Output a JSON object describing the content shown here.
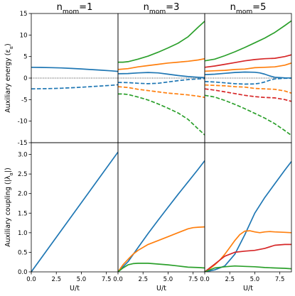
{
  "chart_data": [
    {
      "type": "line",
      "panel": "top-left",
      "title": "n_mom=1",
      "title_parts": {
        "base": "n",
        "sub": "mom",
        "rest": "=1"
      },
      "ylabel": "Auxiliary energy (ε_α)",
      "ylabel_parts": {
        "base": "Auxiliary energy (ε",
        "sub": "α",
        "rest": ")"
      },
      "xlim": [
        0,
        8.66
      ],
      "ylim": [
        -15,
        15
      ],
      "yticks": [
        -15,
        -10,
        -5,
        0,
        5,
        10,
        15
      ],
      "xticks": [],
      "zero_line": true,
      "series": [
        {
          "color": "#1f77b4",
          "dash": false,
          "x": [
            0,
            1,
            2,
            3,
            4,
            5,
            6,
            7,
            8,
            8.66
          ],
          "y": [
            2.5,
            2.48,
            2.43,
            2.35,
            2.24,
            2.12,
            1.98,
            1.83,
            1.68,
            1.55
          ]
        },
        {
          "color": "#1f77b4",
          "dash": true,
          "x": [
            0,
            1,
            2,
            3,
            4,
            5,
            6,
            7,
            8,
            8.66
          ],
          "y": [
            -2.5,
            -2.48,
            -2.43,
            -2.35,
            -2.24,
            -2.12,
            -1.98,
            -1.83,
            -1.68,
            -1.55
          ]
        }
      ]
    },
    {
      "type": "line",
      "panel": "top-middle",
      "title": "n_mom=3",
      "title_parts": {
        "base": "n",
        "sub": "mom",
        "rest": "=3"
      },
      "xlim": [
        0,
        8.66
      ],
      "ylim": [
        -15,
        15
      ],
      "yticks": [],
      "xticks": [],
      "zero_line": true,
      "series": [
        {
          "color": "#2ca02c",
          "dash": false,
          "x": [
            0,
            0.5,
            1,
            2,
            3,
            4,
            5,
            6,
            7,
            8,
            8.66
          ],
          "y": [
            3.7,
            3.7,
            3.8,
            4.4,
            5.1,
            6.0,
            7.0,
            8.1,
            9.6,
            11.8,
            13.2
          ]
        },
        {
          "color": "#ff7f0e",
          "dash": false,
          "x": [
            0,
            1,
            2,
            3,
            4,
            5,
            6,
            7,
            8,
            8.66
          ],
          "y": [
            2.0,
            2.2,
            2.6,
            2.9,
            3.2,
            3.5,
            3.7,
            3.9,
            4.2,
            4.5
          ]
        },
        {
          "color": "#1f77b4",
          "dash": false,
          "x": [
            0,
            1,
            2,
            3,
            4,
            5,
            6,
            7,
            8,
            8.66
          ],
          "y": [
            1.0,
            1.05,
            1.2,
            1.3,
            1.2,
            0.9,
            0.6,
            0.35,
            0.2,
            0.1
          ]
        },
        {
          "color": "#1f77b4",
          "dash": true,
          "x": [
            0,
            1,
            2,
            3,
            4,
            5,
            6,
            7,
            8,
            8.66
          ],
          "y": [
            -1.0,
            -1.05,
            -1.2,
            -1.3,
            -1.2,
            -0.9,
            -0.6,
            -0.35,
            -0.2,
            -0.1
          ]
        },
        {
          "color": "#ff7f0e",
          "dash": true,
          "x": [
            0,
            1,
            2,
            3,
            4,
            5,
            6,
            7,
            8,
            8.66
          ],
          "y": [
            -2.0,
            -2.2,
            -2.6,
            -2.9,
            -3.2,
            -3.5,
            -3.7,
            -3.9,
            -4.2,
            -4.5
          ]
        },
        {
          "color": "#2ca02c",
          "dash": true,
          "x": [
            0,
            0.5,
            1,
            2,
            3,
            4,
            5,
            6,
            7,
            8,
            8.66
          ],
          "y": [
            -3.7,
            -3.7,
            -3.8,
            -4.4,
            -5.1,
            -6.0,
            -7.0,
            -8.1,
            -9.6,
            -11.8,
            -13.2
          ]
        }
      ]
    },
    {
      "type": "line",
      "panel": "top-right",
      "title": "n_mom=5",
      "title_parts": {
        "base": "n",
        "sub": "mom",
        "rest": "=5"
      },
      "xlim": [
        0,
        8.66
      ],
      "ylim": [
        -15,
        15
      ],
      "yticks": [],
      "xticks": [],
      "zero_line": true,
      "series": [
        {
          "color": "#2ca02c",
          "dash": false,
          "x": [
            0,
            1,
            2,
            3,
            4,
            5,
            6,
            7,
            8,
            8.66
          ],
          "y": [
            4.0,
            4.4,
            5.2,
            6.1,
            7.1,
            8.2,
            9.3,
            10.6,
            12.2,
            13.3
          ]
        },
        {
          "color": "#d62728",
          "dash": false,
          "x": [
            0,
            1,
            2,
            3,
            4,
            5,
            6,
            7,
            8,
            8.66
          ],
          "y": [
            2.5,
            2.8,
            3.2,
            3.6,
            4.0,
            4.3,
            4.5,
            4.6,
            5.0,
            5.4
          ]
        },
        {
          "color": "#ff7f0e",
          "dash": false,
          "x": [
            0,
            1,
            2,
            3,
            4,
            5,
            6,
            7,
            8,
            8.66
          ],
          "y": [
            1.6,
            1.7,
            1.8,
            2.0,
            2.1,
            2.4,
            2.5,
            2.6,
            3.0,
            3.5
          ]
        },
        {
          "color": "#1f77b4",
          "dash": false,
          "x": [
            0,
            1,
            2,
            3,
            4,
            5,
            5.5,
            6,
            6.5,
            7,
            8,
            8.66
          ],
          "y": [
            0.8,
            0.9,
            1.1,
            1.3,
            1.4,
            1.35,
            1.2,
            0.9,
            0.5,
            0.2,
            0.05,
            0.02
          ]
        },
        {
          "color": "#1f77b4",
          "dash": true,
          "x": [
            0,
            1,
            2,
            3,
            4,
            5,
            5.5,
            6,
            6.5,
            7,
            8,
            8.66
          ],
          "y": [
            -0.8,
            -0.9,
            -1.1,
            -1.3,
            -1.4,
            -1.35,
            -1.2,
            -0.9,
            -0.5,
            -0.2,
            -0.05,
            -0.02
          ]
        },
        {
          "color": "#ff7f0e",
          "dash": true,
          "x": [
            0,
            1,
            2,
            3,
            4,
            5,
            6,
            7,
            8,
            8.66
          ],
          "y": [
            -1.6,
            -1.7,
            -1.8,
            -2.0,
            -2.1,
            -2.4,
            -2.5,
            -2.6,
            -3.0,
            -3.5
          ]
        },
        {
          "color": "#d62728",
          "dash": true,
          "x": [
            0,
            1,
            2,
            3,
            4,
            5,
            6,
            7,
            8,
            8.66
          ],
          "y": [
            -2.5,
            -2.8,
            -3.2,
            -3.6,
            -4.0,
            -4.3,
            -4.5,
            -4.6,
            -5.0,
            -5.4
          ]
        },
        {
          "color": "#2ca02c",
          "dash": true,
          "x": [
            0,
            1,
            2,
            3,
            4,
            5,
            6,
            7,
            8,
            8.66
          ],
          "y": [
            -4.0,
            -4.4,
            -5.2,
            -6.1,
            -7.1,
            -8.2,
            -9.3,
            -10.6,
            -12.2,
            -13.3
          ]
        }
      ]
    },
    {
      "type": "line",
      "panel": "bottom-left",
      "xlabel": "U/t",
      "ylabel": "Auxiliary coupling (|λ_α|)",
      "ylabel_parts": {
        "base": "Auxiliary coupling (|λ",
        "sub": "α",
        "rest": "|)"
      },
      "xlim": [
        0,
        8.66
      ],
      "ylim": [
        0,
        3.3
      ],
      "xticks": [
        0.0,
        2.5,
        5.0,
        7.5
      ],
      "xticklabels": [
        "0.0",
        "2.5",
        "5.0",
        "7.5"
      ],
      "yticks": [
        0.0,
        0.5,
        1.0,
        1.5,
        2.0,
        2.5,
        3.0
      ],
      "yticklabels": [
        "0.0",
        "0.5",
        "1.0",
        "1.5",
        "2.0",
        "2.5",
        "3.0"
      ],
      "series": [
        {
          "color": "#1f77b4",
          "dash": false,
          "x": [
            0,
            8.66
          ],
          "y": [
            0.0,
            3.06
          ]
        }
      ]
    },
    {
      "type": "line",
      "panel": "bottom-middle",
      "xlabel": "U/t",
      "xlim": [
        0,
        8.66
      ],
      "ylim": [
        0,
        3.3
      ],
      "xticks": [
        0.0,
        2.5,
        5.0,
        7.5
      ],
      "xticklabels": [
        "0.0",
        "2.5",
        "5.0",
        "7.5"
      ],
      "yticks": [],
      "series": [
        {
          "color": "#1f77b4",
          "dash": false,
          "x": [
            0,
            1,
            2,
            3,
            4,
            5,
            6,
            7,
            8,
            8.66
          ],
          "y": [
            0.0,
            0.26,
            0.62,
            0.98,
            1.32,
            1.65,
            1.98,
            2.3,
            2.62,
            2.84
          ]
        },
        {
          "color": "#ff7f0e",
          "dash": false,
          "x": [
            0,
            0.5,
            1,
            1.5,
            2,
            3,
            4,
            5,
            6,
            7,
            7.5,
            8,
            8.66
          ],
          "y": [
            0.0,
            0.18,
            0.32,
            0.45,
            0.55,
            0.7,
            0.8,
            0.9,
            1.0,
            1.1,
            1.13,
            1.14,
            1.15
          ]
        },
        {
          "color": "#2ca02c",
          "dash": false,
          "x": [
            0,
            0.5,
            1,
            1.5,
            2,
            3,
            4,
            5,
            6,
            7,
            8,
            8.66
          ],
          "y": [
            0.0,
            0.1,
            0.18,
            0.21,
            0.22,
            0.22,
            0.2,
            0.18,
            0.15,
            0.12,
            0.11,
            0.1
          ]
        }
      ]
    },
    {
      "type": "line",
      "panel": "bottom-right",
      "xlabel": "U/t",
      "xlim": [
        0,
        8.66
      ],
      "ylim": [
        0,
        3.3
      ],
      "xticks": [
        0.0,
        2.5,
        5.0,
        7.5
      ],
      "xticklabels": [
        "0.0",
        "2.5",
        "5.0",
        "7.5"
      ],
      "yticks": [],
      "series": [
        {
          "color": "#1f77b4",
          "dash": false,
          "x": [
            0,
            1,
            2,
            3,
            4,
            5,
            6,
            7,
            8,
            8.66
          ],
          "y": [
            0.0,
            0.05,
            0.15,
            0.45,
            0.95,
            1.5,
            1.9,
            2.25,
            2.6,
            2.82
          ]
        },
        {
          "color": "#ff7f0e",
          "dash": false,
          "x": [
            0,
            0.5,
            1,
            1.5,
            2,
            2.5,
            3,
            3.5,
            4,
            4.5,
            5,
            5.5,
            6,
            6.5,
            7,
            8,
            8.66
          ],
          "y": [
            0.0,
            0.08,
            0.18,
            0.3,
            0.45,
            0.62,
            0.8,
            0.95,
            1.04,
            1.05,
            1.02,
            1.0,
            1.02,
            1.03,
            1.02,
            1.01,
            1.0
          ]
        },
        {
          "color": "#d62728",
          "dash": false,
          "x": [
            0,
            0.5,
            1,
            1.5,
            2,
            3,
            4,
            5,
            6,
            7,
            8,
            8.66
          ],
          "y": [
            0.0,
            0.1,
            0.2,
            0.3,
            0.4,
            0.5,
            0.53,
            0.55,
            0.6,
            0.68,
            0.7,
            0.7
          ]
        },
        {
          "color": "#2ca02c",
          "dash": false,
          "x": [
            0,
            1,
            2,
            3,
            4,
            5,
            6,
            7,
            8,
            8.66
          ],
          "y": [
            0.0,
            0.1,
            0.13,
            0.15,
            0.14,
            0.13,
            0.11,
            0.1,
            0.09,
            0.08
          ]
        }
      ]
    }
  ]
}
